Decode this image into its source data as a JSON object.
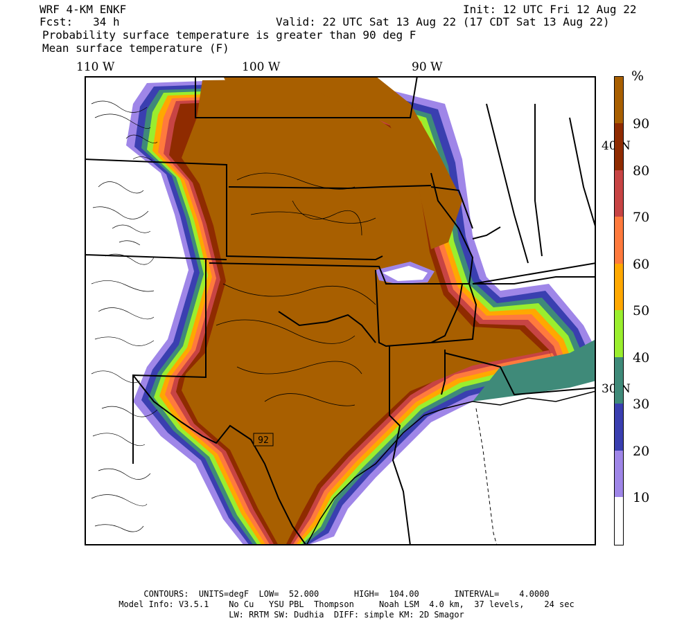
{
  "header": {
    "model": "WRF 4-KM ENKF",
    "init": "Init: 12 UTC Fri 12 Aug 22",
    "fcst": "Fcst:   34 h",
    "valid": "Valid: 22 UTC Sat 13 Aug 22 (17 CDT Sat 13 Aug 22)",
    "field1": "Probability surface temperature is greater than 90 deg F",
    "field2": "Mean surface temperature (F)"
  },
  "map": {
    "lon_labels": [
      "110 W",
      "100 W",
      "90 W"
    ],
    "lat_labels": [
      "40 N",
      "30 N"
    ],
    "contour_label": "92"
  },
  "legend": {
    "unit": "%",
    "labels": [
      "90",
      "80",
      "70",
      "60",
      "50",
      "40",
      "30",
      "20",
      "10"
    ],
    "colors": {
      "90-100": "#a85f00",
      "80-90": "#8f2b00",
      "70-80": "#c74444",
      "60-70": "#ff7a3d",
      "50-60": "#ffa800",
      "40-50": "#9aee2e",
      "30-40": "#3f8a79",
      "20-30": "#3a3fb0",
      "10-20": "#9f86e8",
      "0-10": "#ffffff"
    }
  },
  "footer": {
    "line1": "CONTOURS:  UNITS=degF  LOW=  52.000       HIGH=  104.00       INTERVAL=    4.0000",
    "line2": "Model Info: V3.5.1    No Cu   YSU PBL  Thompson     Noah LSM  4.0 km,  37 levels,    24 sec",
    "line3": "LW: RRTM SW: Dudhia  DIFF: simple KM: 2D Smagor"
  }
}
